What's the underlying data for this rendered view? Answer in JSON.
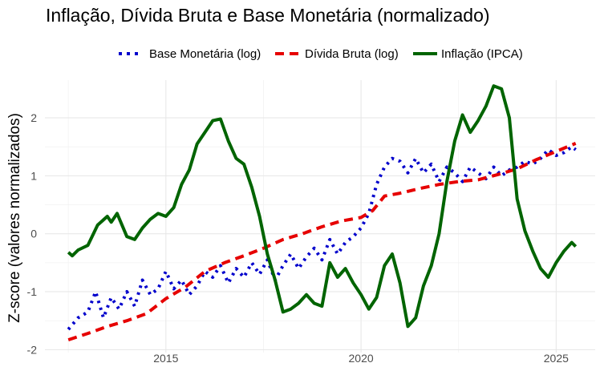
{
  "chart_data": {
    "type": "line",
    "title": "Inflação, Dívida Bruta e Base Monetária (normalizado)",
    "xlabel": "",
    "ylabel": "Z-score (valores normalizados)",
    "xlim": [
      2011.9,
      2026.0
    ],
    "ylim": [
      -2.05,
      2.65
    ],
    "x_ticks": [
      2015,
      2020,
      2025
    ],
    "x_tick_labels": [
      "2015",
      "2020",
      "2025"
    ],
    "y_ticks": [
      -2,
      -1,
      0,
      1,
      2
    ],
    "y_tick_labels": [
      "-2",
      "-1",
      "0",
      "1",
      "2"
    ],
    "grid": true,
    "legend_position": "top",
    "series": [
      {
        "name": "Base Monetária (log)",
        "style": "dotted",
        "color": "#0000cc",
        "points": [
          [
            2012.5,
            -1.65
          ],
          [
            2012.75,
            -1.45
          ],
          [
            2013.0,
            -1.35
          ],
          [
            2013.2,
            -1.0
          ],
          [
            2013.4,
            -1.45
          ],
          [
            2013.6,
            -1.1
          ],
          [
            2013.8,
            -1.3
          ],
          [
            2014.0,
            -1.0
          ],
          [
            2014.2,
            -1.25
          ],
          [
            2014.4,
            -0.8
          ],
          [
            2014.6,
            -1.05
          ],
          [
            2014.8,
            -0.95
          ],
          [
            2015.0,
            -0.65
          ],
          [
            2015.2,
            -0.95
          ],
          [
            2015.4,
            -0.8
          ],
          [
            2015.6,
            -1.05
          ],
          [
            2015.8,
            -0.9
          ],
          [
            2016.0,
            -0.65
          ],
          [
            2016.2,
            -0.75
          ],
          [
            2016.4,
            -0.55
          ],
          [
            2016.6,
            -0.85
          ],
          [
            2016.8,
            -0.6
          ],
          [
            2017.0,
            -0.75
          ],
          [
            2017.2,
            -0.5
          ],
          [
            2017.4,
            -0.7
          ],
          [
            2017.6,
            -0.45
          ],
          [
            2017.8,
            -0.8
          ],
          [
            2018.0,
            -0.55
          ],
          [
            2018.2,
            -0.35
          ],
          [
            2018.4,
            -0.6
          ],
          [
            2018.6,
            -0.4
          ],
          [
            2018.8,
            -0.25
          ],
          [
            2019.0,
            -0.45
          ],
          [
            2019.2,
            -0.1
          ],
          [
            2019.4,
            -0.35
          ],
          [
            2019.6,
            -0.15
          ],
          [
            2019.8,
            -0.05
          ],
          [
            2020.0,
            0.1
          ],
          [
            2020.2,
            0.35
          ],
          [
            2020.4,
            0.85
          ],
          [
            2020.6,
            1.15
          ],
          [
            2020.8,
            1.3
          ],
          [
            2021.0,
            1.25
          ],
          [
            2021.2,
            1.05
          ],
          [
            2021.4,
            1.3
          ],
          [
            2021.6,
            1.05
          ],
          [
            2021.8,
            1.2
          ],
          [
            2022.0,
            0.9
          ],
          [
            2022.2,
            1.15
          ],
          [
            2022.4,
            1.05
          ],
          [
            2022.6,
            0.9
          ],
          [
            2022.8,
            1.15
          ],
          [
            2023.0,
            1.05
          ],
          [
            2023.2,
            0.95
          ],
          [
            2023.4,
            1.15
          ],
          [
            2023.6,
            1.0
          ],
          [
            2023.8,
            1.1
          ],
          [
            2024.0,
            1.15
          ],
          [
            2024.2,
            1.25
          ],
          [
            2024.4,
            1.2
          ],
          [
            2024.6,
            1.3
          ],
          [
            2024.8,
            1.45
          ],
          [
            2025.0,
            1.35
          ],
          [
            2025.2,
            1.4
          ],
          [
            2025.4,
            1.5
          ],
          [
            2025.5,
            1.45
          ]
        ]
      },
      {
        "name": "Dívida Bruta (log)",
        "style": "dashed",
        "color": "#e60000",
        "points": [
          [
            2012.5,
            -1.83
          ],
          [
            2013.0,
            -1.72
          ],
          [
            2013.5,
            -1.6
          ],
          [
            2014.0,
            -1.5
          ],
          [
            2014.5,
            -1.38
          ],
          [
            2015.0,
            -1.12
          ],
          [
            2015.5,
            -0.92
          ],
          [
            2016.0,
            -0.65
          ],
          [
            2016.5,
            -0.5
          ],
          [
            2017.0,
            -0.38
          ],
          [
            2017.5,
            -0.25
          ],
          [
            2018.0,
            -0.1
          ],
          [
            2018.5,
            0.0
          ],
          [
            2019.0,
            0.12
          ],
          [
            2019.5,
            0.22
          ],
          [
            2020.0,
            0.28
          ],
          [
            2020.3,
            0.4
          ],
          [
            2020.6,
            0.65
          ],
          [
            2021.0,
            0.7
          ],
          [
            2021.5,
            0.78
          ],
          [
            2022.0,
            0.85
          ],
          [
            2022.5,
            0.9
          ],
          [
            2023.0,
            0.93
          ],
          [
            2023.5,
            1.02
          ],
          [
            2024.0,
            1.12
          ],
          [
            2024.5,
            1.28
          ],
          [
            2025.0,
            1.42
          ],
          [
            2025.5,
            1.56
          ]
        ]
      },
      {
        "name": "Inflação (IPCA)",
        "style": "solid",
        "color": "#006400",
        "points": [
          [
            2012.5,
            -0.32
          ],
          [
            2012.6,
            -0.38
          ],
          [
            2012.75,
            -0.28
          ],
          [
            2013.0,
            -0.2
          ],
          [
            2013.25,
            0.15
          ],
          [
            2013.5,
            0.3
          ],
          [
            2013.6,
            0.2
          ],
          [
            2013.75,
            0.35
          ],
          [
            2014.0,
            -0.05
          ],
          [
            2014.2,
            -0.1
          ],
          [
            2014.4,
            0.1
          ],
          [
            2014.6,
            0.25
          ],
          [
            2014.8,
            0.35
          ],
          [
            2015.0,
            0.3
          ],
          [
            2015.2,
            0.45
          ],
          [
            2015.4,
            0.85
          ],
          [
            2015.6,
            1.1
          ],
          [
            2015.8,
            1.55
          ],
          [
            2016.0,
            1.75
          ],
          [
            2016.2,
            1.95
          ],
          [
            2016.4,
            1.98
          ],
          [
            2016.6,
            1.6
          ],
          [
            2016.8,
            1.3
          ],
          [
            2017.0,
            1.2
          ],
          [
            2017.2,
            0.8
          ],
          [
            2017.4,
            0.3
          ],
          [
            2017.6,
            -0.35
          ],
          [
            2017.8,
            -0.8
          ],
          [
            2018.0,
            -1.35
          ],
          [
            2018.2,
            -1.3
          ],
          [
            2018.4,
            -1.2
          ],
          [
            2018.6,
            -1.05
          ],
          [
            2018.8,
            -1.2
          ],
          [
            2019.0,
            -1.25
          ],
          [
            2019.2,
            -0.5
          ],
          [
            2019.4,
            -0.75
          ],
          [
            2019.6,
            -0.6
          ],
          [
            2019.8,
            -0.85
          ],
          [
            2020.0,
            -1.05
          ],
          [
            2020.2,
            -1.3
          ],
          [
            2020.4,
            -1.1
          ],
          [
            2020.6,
            -0.55
          ],
          [
            2020.8,
            -0.35
          ],
          [
            2021.0,
            -0.85
          ],
          [
            2021.2,
            -1.6
          ],
          [
            2021.4,
            -1.45
          ],
          [
            2021.6,
            -0.9
          ],
          [
            2021.8,
            -0.55
          ],
          [
            2022.0,
            0.0
          ],
          [
            2022.2,
            0.9
          ],
          [
            2022.4,
            1.6
          ],
          [
            2022.6,
            2.05
          ],
          [
            2022.8,
            1.75
          ],
          [
            2023.0,
            1.95
          ],
          [
            2023.2,
            2.2
          ],
          [
            2023.4,
            2.55
          ],
          [
            2023.6,
            2.5
          ],
          [
            2023.8,
            2.0
          ],
          [
            2024.0,
            0.6
          ],
          [
            2024.2,
            0.05
          ],
          [
            2024.4,
            -0.3
          ],
          [
            2024.6,
            -0.6
          ],
          [
            2024.8,
            -0.75
          ],
          [
            2025.0,
            -0.5
          ],
          [
            2025.2,
            -0.3
          ],
          [
            2025.4,
            -0.15
          ],
          [
            2025.5,
            -0.22
          ]
        ]
      }
    ]
  }
}
